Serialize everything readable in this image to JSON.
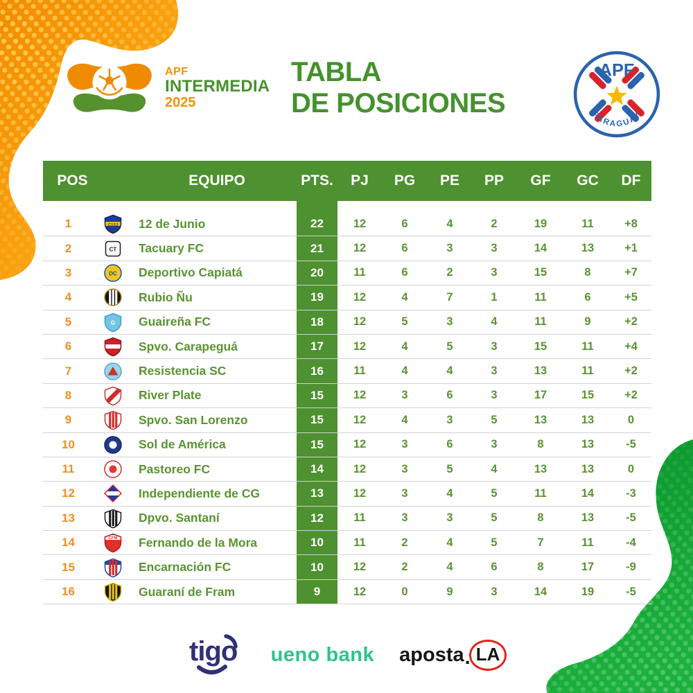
{
  "branding": {
    "competition": {
      "line1": "APF",
      "line2": "INTERMEDIA",
      "line3": "2025"
    },
    "title": {
      "line1": "TABLA",
      "line2": "DE POSICIONES"
    },
    "federation_badge": {
      "top": "APF",
      "bottom": "PARAGUAY"
    }
  },
  "colors": {
    "table_header_green": "#4e9130",
    "text_green": "#5a9331",
    "title_green": "#44922c",
    "position_orange": "#ee8f22",
    "brand_orange": "#f39200",
    "blob_orange": "#f59500",
    "blob_green": "#12a335",
    "badge_blue": "#2b63ad",
    "badge_red": "#d8232a",
    "badge_star_yellow": "#f7b800",
    "sponsor_tigo_navy": "#2f3177",
    "sponsor_ueno_teal": "#2cc48c",
    "sponsor_apostala_red": "#e2231a"
  },
  "chart_data": {
    "type": "table",
    "title": "TABLA DE POSICIONES",
    "columns": [
      "POS",
      "EQUIPO",
      "PTS.",
      "PJ",
      "PG",
      "PE",
      "PP",
      "GF",
      "GC",
      "DF"
    ],
    "rows": [
      {
        "pos": 1,
        "team": "12 de Junio",
        "pts": 22,
        "pj": 12,
        "pg": 6,
        "pe": 4,
        "pp": 2,
        "gf": 19,
        "gc": 11,
        "df": "+8",
        "logo": {
          "shape": "shield",
          "bg": "#1d3d8f",
          "border": "#13265c",
          "band": "h",
          "bandColor": "#f2c20d",
          "text": "C12J",
          "textColor": "#1d3d8f"
        }
      },
      {
        "pos": 2,
        "team": "Tacuary FC",
        "pts": 21,
        "pj": 12,
        "pg": 6,
        "pe": 3,
        "pp": 3,
        "gf": 14,
        "gc": 13,
        "df": "+1",
        "logo": {
          "shape": "square",
          "bg": "#ffffff",
          "border": "#1a1a1a",
          "text": "CT",
          "textColor": "#1a1a1a"
        }
      },
      {
        "pos": 3,
        "team": "Deportivo Capiatá",
        "pts": 20,
        "pj": 11,
        "pg": 6,
        "pe": 2,
        "pp": 3,
        "gf": 15,
        "gc": 8,
        "df": "+7",
        "logo": {
          "shape": "circle",
          "bg": "#f2c51a",
          "border": "#1d4f9e",
          "text": "DC",
          "textColor": "#1d4f9e"
        }
      },
      {
        "pos": 4,
        "team": "Rubio Ñu",
        "pts": 19,
        "pj": 12,
        "pg": 4,
        "pe": 7,
        "pp": 1,
        "gf": 11,
        "gc": 6,
        "df": "+5",
        "logo": {
          "shape": "circle",
          "bg": "#171512",
          "border": "#b7922f",
          "band": "v",
          "bandColor": "#ffffff"
        }
      },
      {
        "pos": 5,
        "team": "Guaireña FC",
        "pts": 18,
        "pj": 12,
        "pg": 5,
        "pe": 3,
        "pp": 4,
        "gf": 11,
        "gc": 9,
        "df": "+2",
        "logo": {
          "shape": "shield",
          "bg": "#74c4e6",
          "border": "#3f9ec7",
          "text": "G",
          "textColor": "#ffffff"
        }
      },
      {
        "pos": 6,
        "team": "Spvo. Carapeguá",
        "pts": 17,
        "pj": 12,
        "pg": 4,
        "pe": 5,
        "pp": 3,
        "gf": 15,
        "gc": 11,
        "df": "+4",
        "logo": {
          "shape": "shield",
          "bg": "#cc2229",
          "border": "#8f1218",
          "band": "h",
          "bandColor": "#ffffff"
        }
      },
      {
        "pos": 7,
        "team": "Resistencia SC",
        "pts": 16,
        "pj": 11,
        "pg": 4,
        "pe": 4,
        "pp": 3,
        "gf": 13,
        "gc": 11,
        "df": "+2",
        "logo": {
          "shape": "circle",
          "bg": "#9ed3ea",
          "border": "#5aa7cc",
          "band": "tri",
          "bandColor": "#c0392b"
        }
      },
      {
        "pos": 8,
        "team": "River Plate",
        "pts": 15,
        "pj": 12,
        "pg": 3,
        "pe": 6,
        "pp": 3,
        "gf": 17,
        "gc": 15,
        "df": "+2",
        "logo": {
          "shape": "shield",
          "bg": "#ffffff",
          "border": "#c0392b",
          "band": "d",
          "bandColor": "#d42a2a"
        }
      },
      {
        "pos": 9,
        "team": "Spvo. San Lorenzo",
        "pts": 15,
        "pj": 12,
        "pg": 4,
        "pe": 3,
        "pp": 5,
        "gf": 13,
        "gc": 13,
        "df": "0",
        "logo": {
          "shape": "shield",
          "bg": "#ffffff",
          "border": "#d42a2a",
          "band": "v",
          "bandColor": "#d42a2a"
        }
      },
      {
        "pos": 10,
        "team": "Sol de América",
        "pts": 15,
        "pj": 12,
        "pg": 3,
        "pe": 6,
        "pp": 3,
        "gf": 8,
        "gc": 13,
        "df": "-5",
        "logo": {
          "shape": "circle",
          "bg": "#20398f",
          "border": "#16265e",
          "band": "dot",
          "bandColor": "#ffffff"
        }
      },
      {
        "pos": 11,
        "team": "Pastoreo FC",
        "pts": 14,
        "pj": 12,
        "pg": 3,
        "pe": 5,
        "pp": 4,
        "gf": 13,
        "gc": 13,
        "df": "0",
        "logo": {
          "shape": "circle",
          "bg": "#ffffff",
          "border": "#d42a2a",
          "band": "dot",
          "bandColor": "#e0392f"
        }
      },
      {
        "pos": 12,
        "team": "Independiente de CG",
        "pts": 13,
        "pj": 12,
        "pg": 3,
        "pe": 4,
        "pp": 5,
        "gf": 11,
        "gc": 14,
        "df": "-3",
        "logo": {
          "shape": "diamond",
          "bg": "#25399c",
          "border": "#d42a2a",
          "band": "h",
          "bandColor": "#ffffff"
        }
      },
      {
        "pos": 13,
        "team": "Dpvo. Santaní",
        "pts": 12,
        "pj": 11,
        "pg": 3,
        "pe": 3,
        "pp": 5,
        "gf": 8,
        "gc": 13,
        "df": "-5",
        "logo": {
          "shape": "shield",
          "bg": "#ffffff",
          "border": "#1a1a1a",
          "band": "v",
          "bandColor": "#1a1a1a"
        }
      },
      {
        "pos": 14,
        "team": "Fernando de la Mora",
        "pts": 10,
        "pj": 11,
        "pg": 2,
        "pe": 4,
        "pp": 5,
        "gf": 7,
        "gc": 11,
        "df": "-4",
        "logo": {
          "shape": "shield",
          "bg": "#e03028",
          "border": "#a8201a",
          "chief": "#ffffff",
          "text": "CFM",
          "textColor": "#e03028"
        }
      },
      {
        "pos": 15,
        "team": "Encarnación FC",
        "pts": 10,
        "pj": 12,
        "pg": 2,
        "pe": 4,
        "pp": 6,
        "gf": 8,
        "gc": 17,
        "df": "-9",
        "logo": {
          "shape": "shield",
          "bg": "#ffffff",
          "border": "#23489e",
          "chief": "#23489e",
          "band": "v",
          "bandColor": "#d42a2a"
        }
      },
      {
        "pos": 16,
        "team": "Guaraní de Fram",
        "pts": 9,
        "pj": 12,
        "pg": 0,
        "pe": 9,
        "pp": 3,
        "gf": 14,
        "gc": 19,
        "df": "-5",
        "logo": {
          "shape": "shield",
          "bg": "#15130e",
          "border": "#d9b61c",
          "band": "v",
          "bandColor": "#e3c51f"
        }
      }
    ]
  },
  "sponsors": {
    "tigo": {
      "label": "tigo"
    },
    "ueno": {
      "label": "ueno bank"
    },
    "apostala": {
      "main": "aposta",
      "dot": ".",
      "circled": "LA"
    }
  }
}
